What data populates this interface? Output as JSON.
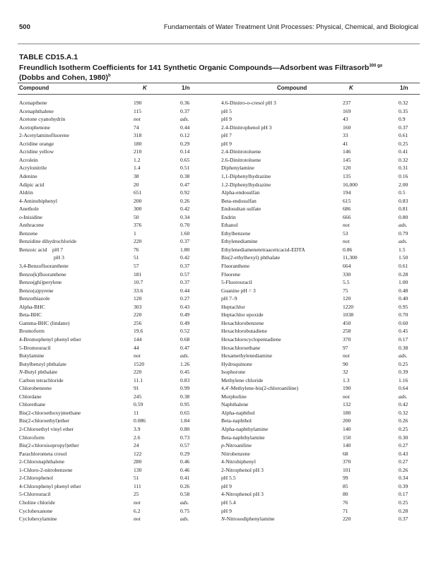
{
  "header": {
    "page_number": "500",
    "running_title": "Fundamentals of Water Treatment Unit Processes: Physical, Chemical, and Biological"
  },
  "table": {
    "label": "TABLE CD15.A.1",
    "title": "Freundlich Isotherm Coefficients for 141 Synthetic Organic Compounds—Adsorbent was Filtrasorb",
    "title_sup1": "300 g",
    "title_sup2": "a",
    "title_line2": "(Dobbs and Cohen, 1980)",
    "title_line2_sup": "b",
    "columns": [
      "Compound",
      "K",
      "1/n"
    ],
    "left_rows": [
      {
        "c": "Acenapthene",
        "k": "190",
        "n": "0.36"
      },
      {
        "c": "Acenaphthalene",
        "k": "115",
        "n": "0.37"
      },
      {
        "c": "Acetone cyanohydrin",
        "k": "not",
        "n": "ads."
      },
      {
        "c": "Acetophenone",
        "k": "74",
        "n": "0.44"
      },
      {
        "c": "2-Acetylaminofluorene",
        "k": "318",
        "n": "0.12"
      },
      {
        "c": "Acridine orange",
        "k": "180",
        "n": "0.29"
      },
      {
        "c": "Acridine yellow",
        "k": "210",
        "n": "0.14"
      },
      {
        "c": "Acrolein",
        "k": "1.2",
        "n": "0.65"
      },
      {
        "c": "Acrylonitrile",
        "k": "1.4",
        "n": "0.51"
      },
      {
        "c": "Adenine",
        "k": "38",
        "n": "0.38"
      },
      {
        "c": "Adipic acid",
        "k": "20",
        "n": "0.47"
      },
      {
        "c": "Aldrin",
        "k": "651",
        "n": "0.92"
      },
      {
        "c": "4-Aminobiphenyl",
        "k": "200",
        "n": "0.26"
      },
      {
        "c": "Anethole",
        "k": "300",
        "n": "0.42"
      },
      {
        "p": "o",
        "c": "-Inisidine",
        "k": "50",
        "n": "0.34"
      },
      {
        "c": "Anthracene",
        "k": "376",
        "n": "0.70"
      },
      {
        "c": "Benzene",
        "k": "1",
        "n": "1.60"
      },
      {
        "c": "Benzidine dihydrochloride",
        "k": "220",
        "n": "0.37"
      },
      {
        "c": "Benzoic acid    pH 7",
        "k": "76",
        "n": "1.80"
      },
      {
        "c": "pH 3",
        "indent": true,
        "k": "51",
        "n": "0.42"
      },
      {
        "c": "3,4-Benzofluoranthene",
        "k": "57",
        "n": "0.37"
      },
      {
        "c": "Benzo(k)fluoranthene",
        "k": "181",
        "n": "0.57"
      },
      {
        "c": "Benzo(ghi)perylene",
        "k": "10.7",
        "n": "0.37"
      },
      {
        "c": "Benzo(a)pyrene",
        "k": "33.6",
        "n": "0.44"
      },
      {
        "c": "Benzothiazole",
        "k": "120",
        "n": "0.27"
      },
      {
        "c": "Alpha-BHC",
        "k": "303",
        "n": "0.43"
      },
      {
        "c": "Beta-BHC",
        "k": "220",
        "n": "0.49"
      },
      {
        "c": "Gamma-BHC (lindane)",
        "k": "256",
        "n": "0.49"
      },
      {
        "c": "Bromoform",
        "k": "19.6",
        "n": "0.52"
      },
      {
        "c": "4-Bromophenyl phenyl ether",
        "k": "144",
        "n": "0.68"
      },
      {
        "c": "5-Bromouracil",
        "k": "44",
        "n": "0.47"
      },
      {
        "c": "Butylamine",
        "k": "not",
        "n": "ads."
      },
      {
        "c": "Butylbenzyl phthalate",
        "k": "1520",
        "n": "1.26"
      },
      {
        "p": "N",
        "c": "-Butyl phthalate",
        "k": "220",
        "n": "0.45"
      },
      {
        "c": "Carbon tetrachloride",
        "k": "11.1",
        "n": "0.83"
      },
      {
        "c": "Chlorobenzene",
        "k": "91",
        "n": "0.99"
      },
      {
        "c": "Chlordane",
        "k": "245",
        "n": "0.38"
      },
      {
        "c": "Chlorethane",
        "k": "0.59",
        "n": "0.95"
      },
      {
        "c": "Bis(2-chloroethoxy)methane",
        "k": "11",
        "n": "0.65"
      },
      {
        "c": "Bis(2-chloroethyl)ether",
        "k": "0.086",
        "n": "1.84"
      },
      {
        "c": "2-Chloroethyl vinyl ether",
        "k": "3.9",
        "n": "0.80"
      },
      {
        "c": "Chloroform",
        "k": "2.6",
        "n": "0.73"
      },
      {
        "c": "Bis(2-chloroisopropyl)ether",
        "k": "24",
        "n": "0.57"
      },
      {
        "c": "Parachlorometa cresol",
        "k": "122",
        "n": "0.29"
      },
      {
        "c": "2-Chloronaphthalene",
        "k": "280",
        "n": "0.46"
      },
      {
        "c": "1-Chloro-2-nitrobenzene",
        "k": "130",
        "n": "0.46"
      },
      {
        "c": "2-Chlorophenol",
        "k": "51",
        "n": "0.41"
      },
      {
        "c": "4-Chlorophenyl phenyl ether",
        "k": "111",
        "n": "0.26"
      },
      {
        "c": "5-Chlorouracil",
        "k": "25",
        "n": "0.58"
      },
      {
        "c": "Choline chloride",
        "k": "not",
        "n": "ads."
      },
      {
        "c": "Cyclohexanone",
        "k": "6.2",
        "n": "0.75"
      },
      {
        "c": "Cyclohexylamine",
        "k": "not",
        "n": "ads."
      }
    ],
    "right_rows": [
      {
        "c": "4.6-Dinitro-",
        "p2": "o",
        "c2": "-cresol pH 3",
        "k": "237",
        "n": "0.32"
      },
      {
        "c": "pH 5",
        "k": "169",
        "n": "0.35"
      },
      {
        "c": "pH 9",
        "k": "43",
        "n": "0.9"
      },
      {
        "c": "2.4-Dinitrophenol pH 3",
        "k": "160",
        "n": "0.37"
      },
      {
        "c": "pH 7",
        "k": "33",
        "n": "0.61"
      },
      {
        "c": "pH 9",
        "k": "41",
        "n": "0.25"
      },
      {
        "c": "2.4-Dinitrotoluene",
        "k": "146",
        "n": "0.41"
      },
      {
        "c": "2.6-Dinitrotoluene",
        "k": "145",
        "n": "0.32"
      },
      {
        "c": "Diphenylamine",
        "k": "120",
        "n": "0.31"
      },
      {
        "c": "1,1-Diphenylhydrazine",
        "k": "135",
        "n": "0.16"
      },
      {
        "c": "1.2-Diphenylhydrazine",
        "k": "16,000",
        "n": "2.00"
      },
      {
        "c": "Alpha-endosulfan",
        "k": "194",
        "n": "0.5"
      },
      {
        "c": "Beta-endosulfan",
        "k": "615",
        "n": "0.83"
      },
      {
        "c": "Endosultan sulfate",
        "k": "686",
        "n": "0.81"
      },
      {
        "c": "Endrin",
        "k": "666",
        "n": "0.80"
      },
      {
        "c": "Ethanol",
        "k": "not",
        "n": "ads."
      },
      {
        "c": "Ethylbenzene",
        "k": "53",
        "n": "0.79"
      },
      {
        "c": "Ethylenediamine",
        "k": "not",
        "n": "ads."
      },
      {
        "c": "Ethylenediamenetetraaceticacid-EDTA",
        "k": "0.86",
        "n": "1.5"
      },
      {
        "c": "Bis(2-ethylhexyl) phthalate",
        "k": "11,300",
        "n": "1.50"
      },
      {
        "c": "Fluoranthene",
        "k": "664",
        "n": "0.61"
      },
      {
        "c": "Fluorene",
        "k": "330",
        "n": "0.28"
      },
      {
        "c": "5-Fluorouracil",
        "k": "5.5",
        "n": "1.00"
      },
      {
        "c": "Guanine pH = 3",
        "k": "75",
        "n": "0.48"
      },
      {
        "c": "pH 7–9",
        "k": "120",
        "n": "0.40"
      },
      {
        "c": "Heptachlor",
        "k": "1220",
        "n": "0.95"
      },
      {
        "c": "Heptachlor epoxide",
        "k": "1038",
        "n": "0.70"
      },
      {
        "c": "Hexachlorobenzene",
        "k": "450",
        "n": "0.60"
      },
      {
        "c": "Hexachlorobutadiene",
        "k": "258",
        "n": "0.45"
      },
      {
        "c": "Hexachlorocyclopentadiene",
        "k": "370",
        "n": "0.17"
      },
      {
        "c": "Hexachloroethane",
        "k": "97",
        "n": "0.38"
      },
      {
        "c": "Hexamethylenediamine",
        "k": "not",
        "n": "ads."
      },
      {
        "c": "Hydroquinone",
        "k": "90",
        "n": "0.25"
      },
      {
        "c": "Isophorone",
        "k": "32",
        "n": "0.39"
      },
      {
        "c": "Methylene chloride",
        "k": "1.3",
        "n": "1.16"
      },
      {
        "c": "4,4′-Methylene-bis(2-chloroaniline)",
        "k": "190",
        "n": "0.64"
      },
      {
        "c": "Morpholine",
        "k": "not",
        "n": "ads."
      },
      {
        "c": "Naphthalene",
        "k": "132",
        "n": "0.42"
      },
      {
        "c": "Alpha-naphthol",
        "k": "180",
        "n": "0.32"
      },
      {
        "c": "Beta-naphthol",
        "k": "200",
        "n": "0.26"
      },
      {
        "c": "Alpha-naphthylamine",
        "k": "140",
        "n": "0.25"
      },
      {
        "c": "Beta-naphthylamine",
        "k": "150",
        "n": "0.30"
      },
      {
        "p": "p",
        "c": "-Nitroaniline",
        "k": "140",
        "n": "0.27"
      },
      {
        "c": "Nitrobenzene",
        "k": "68",
        "n": "0.43"
      },
      {
        "c": "4-Nitrobiphenyl",
        "k": "370",
        "n": "0.27"
      },
      {
        "c": "2-Nitrophenol pH 3",
        "k": "101",
        "n": "0.26"
      },
      {
        "c": "pH 5.5",
        "k": "99",
        "n": "0.34"
      },
      {
        "c": "pH 9",
        "k": "85",
        "n": "0.39"
      },
      {
        "c": "4-Nitrophenol pH 3",
        "k": "80",
        "n": "0.17"
      },
      {
        "c": "pH 5.4",
        "k": "76",
        "n": "0.25"
      },
      {
        "c": "pH 9",
        "k": "71",
        "n": "0.28"
      },
      {
        "p": "N",
        "c": "-Nitrosodiphenylamine",
        "k": "220",
        "n": "0.37"
      }
    ]
  }
}
